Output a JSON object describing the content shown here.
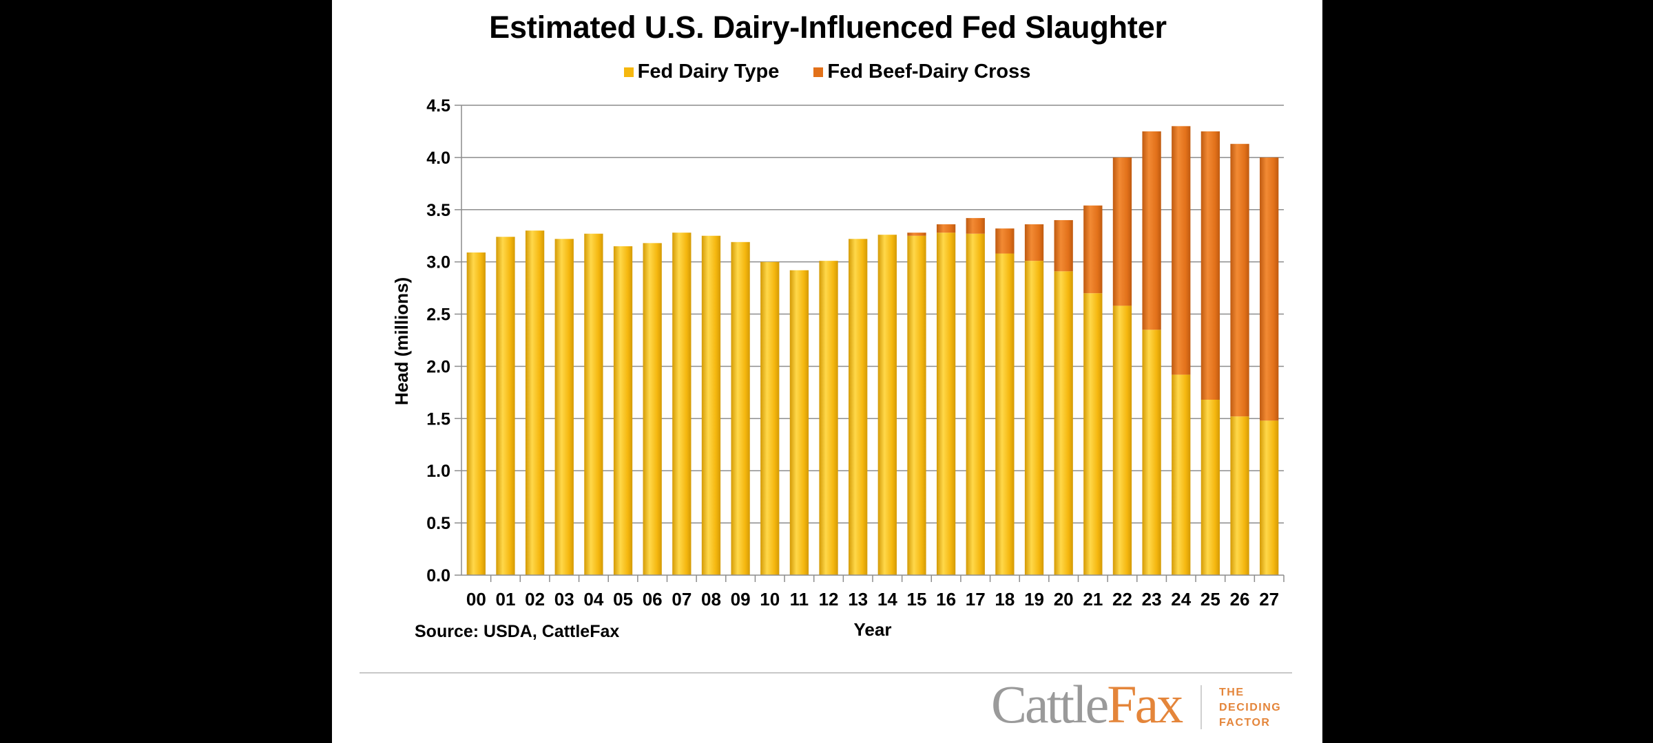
{
  "chart_data": {
    "type": "bar",
    "stacked": true,
    "title": "Estimated U.S. Dairy-Influenced Fed Slaughter",
    "xlabel": "Year",
    "ylabel": "Head (millions)",
    "ylim": [
      0,
      4.5
    ],
    "yticks": [
      "0.0",
      "0.5",
      "1.0",
      "1.5",
      "2.0",
      "2.5",
      "3.0",
      "3.5",
      "4.0",
      "4.5"
    ],
    "categories": [
      "00",
      "01",
      "02",
      "03",
      "04",
      "05",
      "06",
      "07",
      "08",
      "09",
      "10",
      "11",
      "12",
      "13",
      "14",
      "15",
      "16",
      "17",
      "18",
      "19",
      "20",
      "21",
      "22",
      "23",
      "24",
      "25",
      "26",
      "27"
    ],
    "series": [
      {
        "name": "Fed Dairy Type",
        "color": "#f5b70f",
        "values": [
          3.09,
          3.24,
          3.3,
          3.22,
          3.27,
          3.15,
          3.18,
          3.28,
          3.25,
          3.19,
          3.0,
          2.92,
          3.01,
          3.22,
          3.26,
          3.25,
          3.28,
          3.27,
          3.08,
          3.01,
          2.91,
          2.7,
          2.58,
          2.35,
          1.92,
          1.68,
          1.52,
          1.48
        ]
      },
      {
        "name": "Fed Beef-Dairy Cross",
        "color": "#e2711a",
        "values": [
          0,
          0,
          0,
          0,
          0,
          0,
          0,
          0,
          0,
          0,
          0,
          0,
          0,
          0,
          0,
          0.03,
          0.08,
          0.15,
          0.24,
          0.35,
          0.49,
          0.84,
          1.42,
          1.9,
          2.38,
          2.57,
          2.61,
          2.52
        ]
      }
    ],
    "source": "Source: USDA, CattleFax"
  },
  "branding": {
    "logo_part1": "Cattle",
    "logo_part2": "Fax",
    "tagline": [
      "THE",
      "DECIDING",
      "FACTOR"
    ]
  }
}
